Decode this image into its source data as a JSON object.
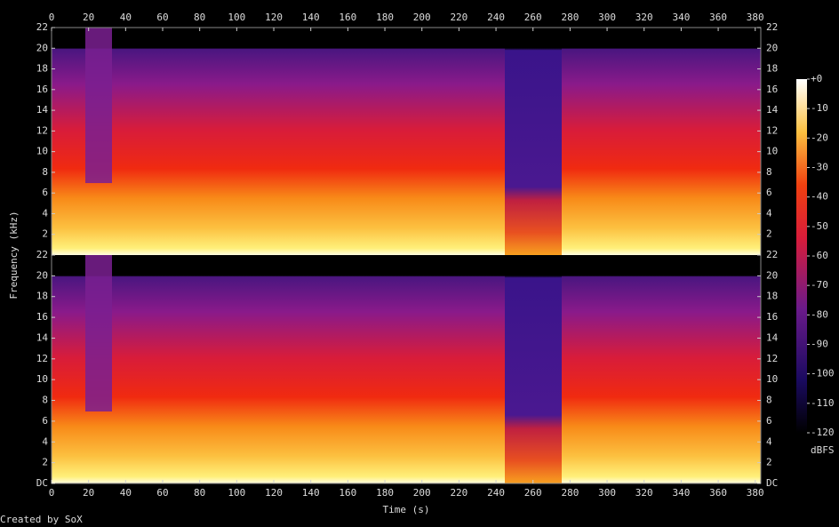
{
  "chart_data": {
    "type": "spectrogram",
    "xlabel": "Time (s)",
    "ylabel": "Frequency (kHz)",
    "credit": "Created by SoX",
    "xlim": [
      0,
      383
    ],
    "xticks": [
      0,
      20,
      40,
      60,
      80,
      100,
      120,
      140,
      160,
      180,
      200,
      220,
      240,
      260,
      280,
      300,
      320,
      340,
      360,
      380
    ],
    "ylim": [
      0,
      22
    ],
    "yticks": [
      {
        "value": 0,
        "label": "DC"
      },
      2,
      4,
      6,
      8,
      10,
      12,
      14,
      16,
      18,
      20,
      22
    ],
    "zlim": [
      -120,
      0
    ],
    "zlabel": "dBFS",
    "zticks": [
      {
        "value": 0,
        "label": "+0"
      },
      -10,
      -20,
      -30,
      -40,
      -50,
      -60,
      -70,
      -80,
      -90,
      -100,
      -110,
      -120
    ]
  }
}
